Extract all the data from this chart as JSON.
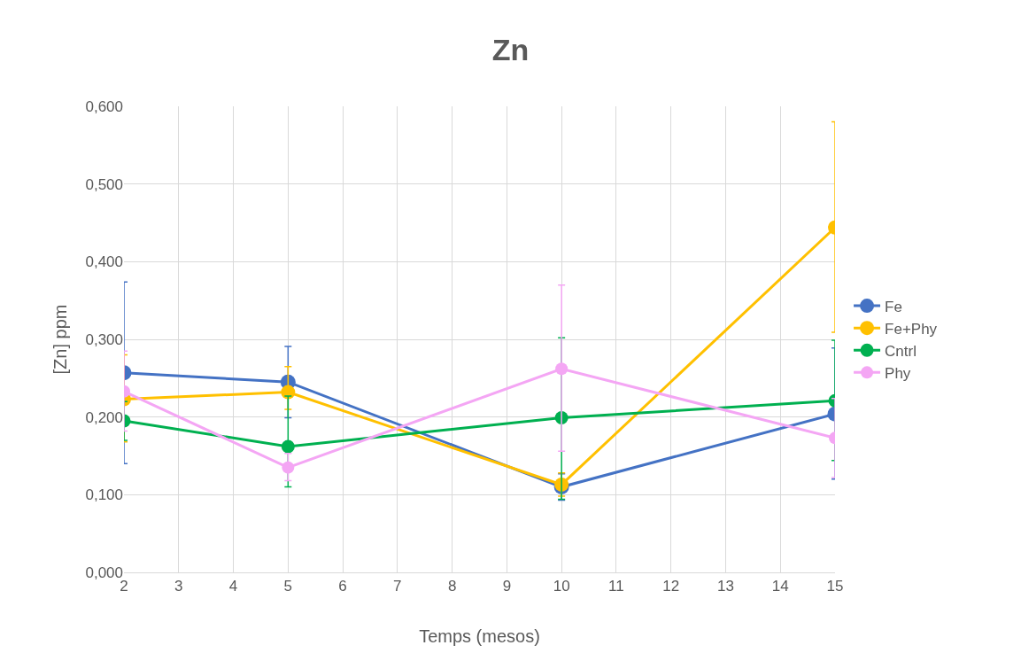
{
  "chart_data": {
    "type": "line",
    "title": "Zn",
    "xlabel": "Temps (mesos)",
    "ylabel": "[Zn] ppm",
    "x": [
      2,
      5,
      10,
      15
    ],
    "series": [
      {
        "name": "Fe",
        "color": "#4472c4",
        "values": [
          0.257,
          0.245,
          0.11,
          0.204
        ],
        "errors": [
          [
            0.14,
            0.374
          ],
          [
            0.199,
            0.291
          ],
          [
            0.093,
            0.127
          ],
          [
            0.12,
            0.289
          ]
        ]
      },
      {
        "name": "Fe+Phy",
        "color": "#ffc000",
        "values": [
          0.223,
          0.232,
          0.113,
          0.444
        ],
        "errors": [
          [
            0.168,
            0.28
          ],
          [
            0.21,
            0.265
          ],
          [
            0.098,
            0.128
          ],
          [
            0.309,
            0.58
          ]
        ]
      },
      {
        "name": "Cntrl",
        "color": "#00b050",
        "values": [
          0.195,
          0.162,
          0.199,
          0.221
        ],
        "errors": [
          [
            0.17,
            0.22
          ],
          [
            0.11,
            0.227
          ],
          [
            0.094,
            0.302
          ],
          [
            0.144,
            0.299
          ]
        ]
      },
      {
        "name": "Phy",
        "color": "#f4a6f4",
        "values": [
          0.233,
          0.135,
          0.262,
          0.173
        ],
        "errors": [
          [
            0.182,
            0.285
          ],
          [
            0.118,
            0.153
          ],
          [
            0.156,
            0.37
          ],
          [
            0.122,
            0.224
          ]
        ]
      }
    ],
    "xlim": [
      2,
      15
    ],
    "xticks": [
      2,
      3,
      4,
      5,
      6,
      7,
      8,
      9,
      10,
      11,
      12,
      13,
      14,
      15
    ],
    "ylim": [
      0,
      0.6
    ],
    "yticks": [
      {
        "value": 0,
        "label": "0,000"
      },
      {
        "value": 0.1,
        "label": "0,100"
      },
      {
        "value": 0.2,
        "label": "0,200"
      },
      {
        "value": 0.3,
        "label": "0,300"
      },
      {
        "value": 0.4,
        "label": "0,400"
      },
      {
        "value": 0.5,
        "label": "0,500"
      },
      {
        "value": 0.6,
        "label": "0,600"
      }
    ],
    "grid": true,
    "legend": "right",
    "marker": "circle",
    "line_style": "solid"
  }
}
